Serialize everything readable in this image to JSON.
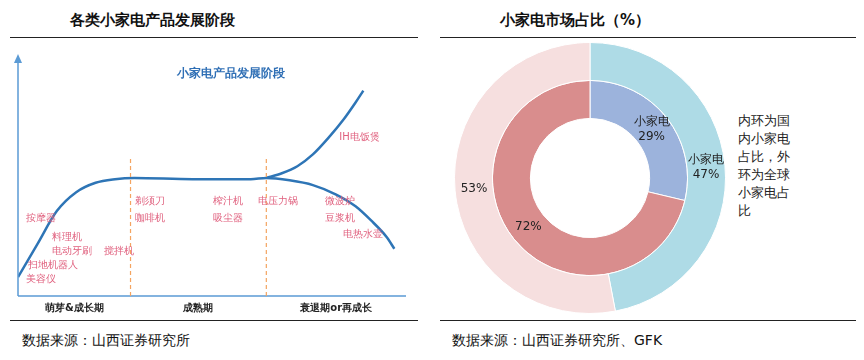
{
  "chart_data": [
    {
      "type": "line",
      "title": "各类小家电产品发展阶段",
      "subtitle": "小家电产品发展阶段",
      "source": "数据来源：山西证券研究所",
      "xlim": [
        0,
        100
      ],
      "ylim": [
        0,
        100
      ],
      "grid": false,
      "tick_labels": false,
      "series": [
        {
          "color": "#2e75b6",
          "x": [
            0,
            5,
            10,
            15,
            20,
            25,
            30,
            45,
            60,
            64,
            70,
            76,
            82,
            87,
            91,
            95,
            97
          ],
          "values": [
            8,
            22,
            36,
            44,
            48,
            49.5,
            50,
            49.5,
            49.5,
            50,
            49,
            47,
            43,
            38,
            32,
            25,
            20
          ]
        },
        {
          "color": "#2e75b6",
          "x": [
            64,
            68,
            72,
            76,
            80,
            84,
            87,
            89
          ],
          "values": [
            50,
            52,
            55,
            60,
            67,
            75,
            82,
            87
          ]
        }
      ],
      "stage_dividers": [
        29,
        64
      ],
      "stages": [
        {
          "label": "萌芽&成长期",
          "products": [
            "按摩器",
            "料理机",
            "电动牙刷",
            "搅拌机",
            "扫地机器人",
            "美容仪"
          ]
        },
        {
          "label": "成熟期",
          "products": [
            "剃须刀",
            "咖啡机",
            "榨汁机",
            "吸尘器"
          ]
        },
        {
          "label": "衰退期or再成长",
          "products": [
            "IH电饭煲",
            "电压力锅",
            "微波炉",
            "豆浆机",
            "电热水壶"
          ]
        }
      ]
    },
    {
      "type": "doughnut",
      "title": "小家电市场占比（%）",
      "source": "数据来源：山西证券研究所、GFK",
      "annotation": "内环为国内小家电占比，外环为全球小家电占比",
      "categories": [
        "小家电",
        null
      ],
      "data_labels": true,
      "series": [
        {
          "values": [
            47,
            53
          ],
          "value_labels": [
            "47%",
            "53%"
          ],
          "colors": [
            "#aedbe6",
            "#f6dfdf"
          ]
        },
        {
          "values": [
            29,
            72
          ],
          "value_labels": [
            "29%",
            "72%"
          ],
          "colors": [
            "#9cb3dc",
            "#d98d8d"
          ]
        }
      ]
    }
  ]
}
